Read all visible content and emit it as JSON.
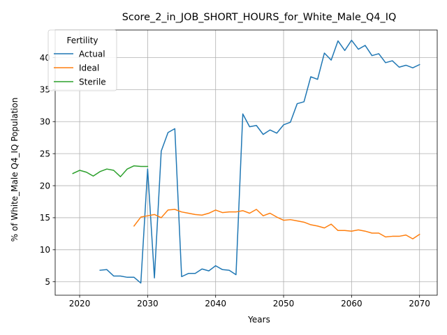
{
  "chart_data": {
    "type": "line",
    "title": "Score_2_in_JOB_SHORT_HOURS_for_White_Male_Q4_IQ",
    "xlabel": "Years",
    "ylabel": "% of White_Male Q4_IQ Population",
    "xlim": [
      2016.4,
      2072.6
    ],
    "ylim": [
      2.9,
      44.3
    ],
    "xticks": [
      2020,
      2030,
      2040,
      2050,
      2060,
      2070
    ],
    "yticks": [
      5,
      10,
      15,
      20,
      25,
      30,
      35,
      40
    ],
    "grid": true,
    "legend": {
      "title": "Fertility",
      "position": "upper-left"
    },
    "series": [
      {
        "name": "Actual",
        "color": "#1f77b4",
        "x": [
          2023,
          2024,
          2025,
          2026,
          2027,
          2028,
          2029,
          2030,
          2031,
          2032,
          2033,
          2034,
          2035,
          2036,
          2037,
          2038,
          2039,
          2040,
          2041,
          2042,
          2043,
          2044,
          2045,
          2046,
          2047,
          2048,
          2049,
          2050,
          2051,
          2052,
          2053,
          2054,
          2055,
          2056,
          2057,
          2058,
          2059,
          2060,
          2061,
          2062,
          2063,
          2064,
          2065,
          2066,
          2067,
          2068,
          2069,
          2070
        ],
        "y": [
          6.8,
          6.9,
          5.9,
          5.9,
          5.7,
          5.7,
          4.8,
          22.6,
          5.6,
          25.4,
          28.3,
          28.9,
          5.8,
          6.3,
          6.3,
          7.0,
          6.7,
          7.5,
          6.9,
          6.8,
          6.1,
          31.2,
          29.2,
          29.4,
          28.0,
          28.7,
          28.2,
          29.5,
          29.9,
          32.8,
          33.1,
          37.0,
          36.6,
          40.7,
          39.6,
          42.6,
          41.1,
          42.7,
          41.3,
          41.9,
          40.3,
          40.6,
          39.2,
          39.5,
          38.5,
          38.8,
          38.4,
          38.9
        ]
      },
      {
        "name": "Ideal",
        "color": "#ff7f0e",
        "x": [
          2028,
          2029,
          2030,
          2031,
          2032,
          2033,
          2034,
          2035,
          2036,
          2037,
          2038,
          2039,
          2040,
          2041,
          2042,
          2043,
          2044,
          2045,
          2046,
          2047,
          2048,
          2049,
          2050,
          2051,
          2052,
          2053,
          2054,
          2055,
          2056,
          2057,
          2058,
          2059,
          2060,
          2061,
          2062,
          2063,
          2064,
          2065,
          2066,
          2067,
          2068,
          2069,
          2070
        ],
        "y": [
          13.7,
          15.1,
          15.3,
          15.5,
          15.0,
          16.2,
          16.3,
          15.9,
          15.7,
          15.5,
          15.4,
          15.7,
          16.2,
          15.8,
          15.9,
          15.9,
          16.1,
          15.7,
          16.3,
          15.3,
          15.7,
          15.1,
          14.6,
          14.7,
          14.5,
          14.3,
          13.9,
          13.7,
          13.4,
          14.0,
          13.0,
          13.0,
          12.9,
          13.1,
          12.9,
          12.6,
          12.6,
          12.0,
          12.1,
          12.1,
          12.3,
          11.7,
          12.4
        ]
      },
      {
        "name": "Sterile",
        "color": "#2ca02c",
        "x": [
          2019,
          2020,
          2021,
          2022,
          2023,
          2024,
          2025,
          2026,
          2027,
          2028,
          2029,
          2030
        ],
        "y": [
          21.9,
          22.4,
          22.1,
          21.5,
          22.2,
          22.6,
          22.4,
          21.4,
          22.6,
          23.1,
          23.0,
          23.0
        ]
      }
    ]
  }
}
